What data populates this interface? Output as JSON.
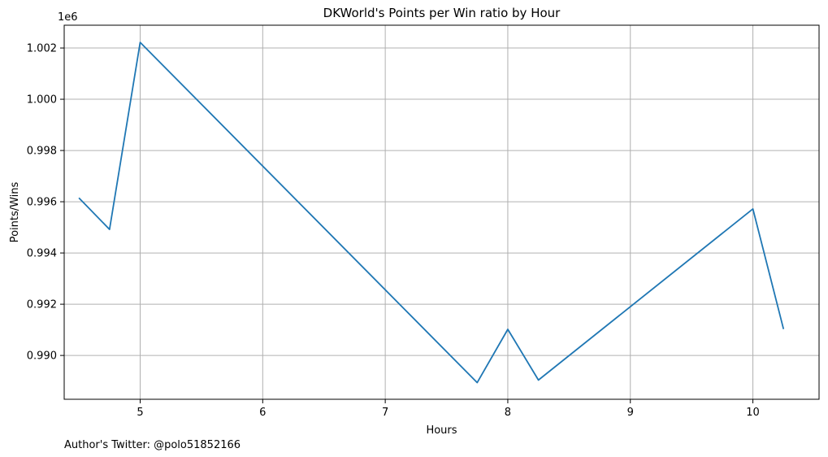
{
  "chart_data": {
    "type": "line",
    "title": "DKWorld's Points per Win ratio by Hour",
    "xlabel": "Hours",
    "ylabel": "Points/Wins",
    "y_offset_label": "1e6",
    "footer_text": "Author's Twitter: @polo51852166",
    "x": [
      4.5,
      4.75,
      5.0,
      7.75,
      8.0,
      8.25,
      10.0,
      10.25
    ],
    "y": [
      996150,
      994920,
      1002220,
      988940,
      991020,
      989040,
      995720,
      991030
    ],
    "xlim": [
      4.38,
      10.54
    ],
    "ylim": [
      988290,
      1002890
    ],
    "x_ticks": [
      5,
      6,
      7,
      8,
      9,
      10
    ],
    "x_tick_labels": [
      "5",
      "6",
      "7",
      "8",
      "9",
      "10"
    ],
    "y_ticks": [
      990000,
      992000,
      994000,
      996000,
      998000,
      1000000,
      1002000
    ],
    "y_tick_labels": [
      "0.990",
      "0.992",
      "0.994",
      "0.996",
      "0.998",
      "1.000",
      "1.002"
    ],
    "grid": true,
    "line_color": "#1f77b4",
    "grid_color": "#b0b0b0"
  }
}
